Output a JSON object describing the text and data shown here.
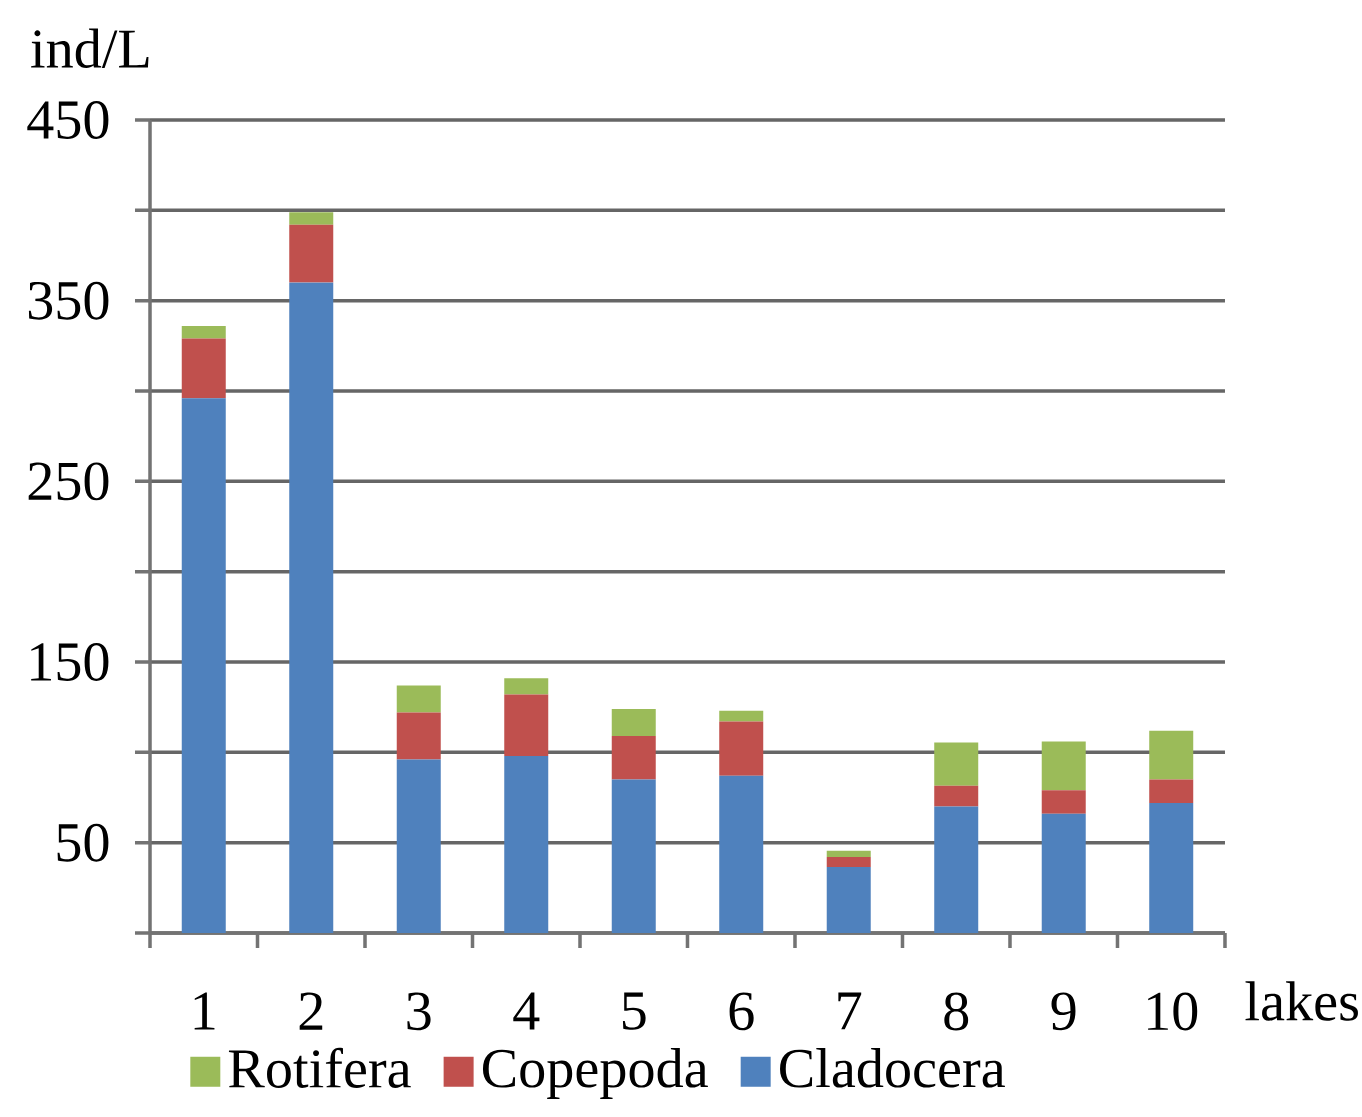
{
  "chart_data": {
    "type": "bar",
    "stacked": true,
    "xlabel": "lakes",
    "ylabel": "ind/L",
    "categories": [
      "1",
      "2",
      "3",
      "4",
      "5",
      "6",
      "7",
      "8",
      "9",
      "10"
    ],
    "series": [
      {
        "name": "Cladocera",
        "color": "#4f81bd",
        "values": [
          296,
          360,
          96,
          98,
          85,
          87,
          36.5,
          70,
          66,
          72
        ]
      },
      {
        "name": "Copepoda",
        "color": "#c0504d",
        "values": [
          33,
          32,
          26,
          34,
          24,
          30,
          5.5,
          11.5,
          13,
          13
        ]
      },
      {
        "name": "Rotifera",
        "color": "#9bbb59",
        "values": [
          7,
          7,
          15,
          9,
          15,
          6,
          3.5,
          24,
          27,
          27
        ]
      }
    ],
    "ylim": [
      0,
      450
    ],
    "yticks": [
      {
        "value": 0,
        "label": null
      },
      50,
      {
        "value": 100,
        "label": null
      },
      150,
      {
        "value": 200,
        "label": null
      },
      250,
      {
        "value": 300,
        "label": null
      },
      350,
      {
        "value": 400,
        "label": null
      },
      450
    ],
    "grid": "y",
    "legend": "bottom"
  }
}
